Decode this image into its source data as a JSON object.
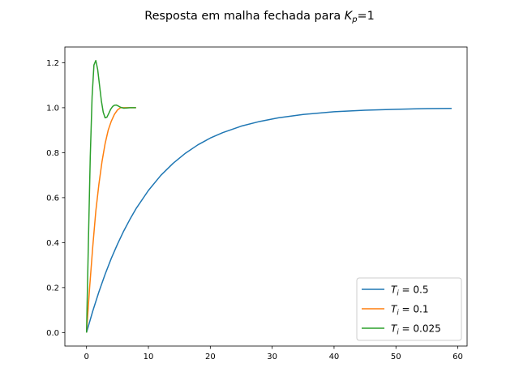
{
  "chart_data": {
    "type": "line",
    "title": {
      "prefix": "Resposta em malha fechada para ",
      "var": "K",
      "sub": "p",
      "suffix": "=1"
    },
    "xlabel": "",
    "ylabel": "",
    "xlim": [
      -3.5,
      61.5
    ],
    "ylim": [
      -0.06,
      1.27
    ],
    "xticks": [
      0,
      10,
      20,
      30,
      40,
      50,
      60
    ],
    "yticks": [
      0.0,
      0.2,
      0.4,
      0.6,
      0.8,
      1.0,
      1.2
    ],
    "xtick_labels": [
      "0",
      "10",
      "20",
      "30",
      "40",
      "50",
      "60"
    ],
    "ytick_labels": [
      "0.0",
      "0.2",
      "0.4",
      "0.6",
      "0.8",
      "1.0",
      "1.2"
    ],
    "grid": false,
    "legend_position": "lower-right",
    "series": [
      {
        "legend": {
          "var": "T",
          "sub": "i",
          "text": " = 0.5"
        },
        "color": "#1f77b4",
        "x": [
          0,
          1,
          2,
          3,
          4,
          5,
          6,
          7,
          8,
          10,
          12,
          14,
          16,
          18,
          20,
          22,
          25,
          28,
          31,
          35,
          40,
          45,
          50,
          55,
          59
        ],
        "y": [
          0,
          0.095,
          0.181,
          0.259,
          0.33,
          0.393,
          0.451,
          0.503,
          0.551,
          0.632,
          0.699,
          0.753,
          0.798,
          0.835,
          0.865,
          0.889,
          0.918,
          0.939,
          0.955,
          0.97,
          0.982,
          0.989,
          0.993,
          0.996,
          0.997
        ]
      },
      {
        "legend": {
          "var": "T",
          "sub": "i",
          "text": " = 0.1"
        },
        "color": "#ff7f0e",
        "x": [
          0,
          0.5,
          1,
          1.5,
          2,
          2.5,
          3,
          3.5,
          4,
          4.5,
          5,
          5.5,
          6,
          6.5,
          7,
          8
        ],
        "y": [
          0,
          0.2,
          0.38,
          0.54,
          0.66,
          0.76,
          0.84,
          0.9,
          0.94,
          0.97,
          0.99,
          1.0,
          1.0,
          1.0,
          1.0,
          1.0
        ]
      },
      {
        "legend": {
          "var": "T",
          "sub": "i",
          "text": " = 0.025"
        },
        "color": "#2ca02c",
        "x": [
          0,
          0.3,
          0.6,
          0.9,
          1.2,
          1.5,
          1.8,
          2.1,
          2.4,
          2.7,
          3.0,
          3.3,
          3.6,
          3.9,
          4.2,
          4.5,
          4.8,
          5.1,
          5.5,
          6.0,
          6.5,
          7.0,
          7.5,
          8.0
        ],
        "y": [
          0,
          0.4,
          0.78,
          1.05,
          1.19,
          1.21,
          1.17,
          1.1,
          1.03,
          0.98,
          0.955,
          0.958,
          0.975,
          0.993,
          1.005,
          1.011,
          1.012,
          1.008,
          1.002,
          0.998,
          0.999,
          1.0,
          1.0,
          1.0
        ]
      }
    ]
  }
}
